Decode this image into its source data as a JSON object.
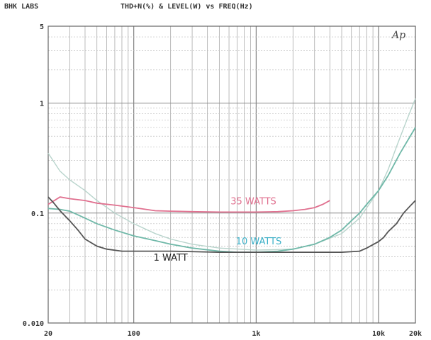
{
  "header": {
    "brand": "BHK LABS",
    "title": "THD+N(%) & LEVEL(W) vs FREQ(Hz)",
    "logo_text": "Ap"
  },
  "chart_data": {
    "type": "line",
    "title": "THD+N(%) & LEVEL(W) vs FREQ(Hz)",
    "xscale": "log",
    "yscale": "log",
    "xlim": [
      20,
      20000
    ],
    "ylim": [
      0.01,
      5
    ],
    "grid": true,
    "x_ticks": [
      {
        "value": 20,
        "label": "20"
      },
      {
        "value": 100,
        "label": "100"
      },
      {
        "value": 1000,
        "label": "1k"
      },
      {
        "value": 10000,
        "label": "10k"
      },
      {
        "value": 20000,
        "label": "20k"
      }
    ],
    "y_ticks": [
      {
        "value": 5,
        "label": "5"
      },
      {
        "value": 1,
        "label": "1"
      },
      {
        "value": 0.1,
        "label": "0.1"
      },
      {
        "value": 0.01,
        "label": "0.010"
      }
    ],
    "series": [
      {
        "name": "35 WATTS",
        "color": "#e0708f",
        "points": [
          [
            20,
            0.12
          ],
          [
            25,
            0.14
          ],
          [
            30,
            0.135
          ],
          [
            40,
            0.13
          ],
          [
            50,
            0.123
          ],
          [
            70,
            0.118
          ],
          [
            100,
            0.112
          ],
          [
            150,
            0.105
          ],
          [
            200,
            0.104
          ],
          [
            300,
            0.103
          ],
          [
            500,
            0.102
          ],
          [
            700,
            0.102
          ],
          [
            1000,
            0.102
          ],
          [
            1500,
            0.103
          ],
          [
            2000,
            0.105
          ],
          [
            2500,
            0.108
          ],
          [
            3000,
            0.112
          ],
          [
            3500,
            0.12
          ],
          [
            4000,
            0.13
          ]
        ]
      },
      {
        "name": "10 WATTS",
        "color": "#6fb8a8",
        "points": [
          [
            20,
            0.11
          ],
          [
            25,
            0.108
          ],
          [
            30,
            0.104
          ],
          [
            40,
            0.09
          ],
          [
            50,
            0.08
          ],
          [
            70,
            0.07
          ],
          [
            100,
            0.062
          ],
          [
            150,
            0.056
          ],
          [
            200,
            0.052
          ],
          [
            300,
            0.048
          ],
          [
            500,
            0.045
          ],
          [
            700,
            0.044
          ],
          [
            1000,
            0.044
          ],
          [
            1500,
            0.045
          ],
          [
            2000,
            0.047
          ],
          [
            3000,
            0.052
          ],
          [
            4000,
            0.06
          ],
          [
            5000,
            0.07
          ],
          [
            6000,
            0.085
          ],
          [
            7000,
            0.1
          ],
          [
            8000,
            0.12
          ],
          [
            10000,
            0.16
          ],
          [
            12000,
            0.22
          ],
          [
            15000,
            0.35
          ],
          [
            20000,
            0.6
          ]
        ]
      },
      {
        "name": "1 WATT",
        "color": "#555555",
        "points": [
          [
            20,
            0.14
          ],
          [
            22,
            0.125
          ],
          [
            25,
            0.105
          ],
          [
            30,
            0.085
          ],
          [
            35,
            0.07
          ],
          [
            40,
            0.058
          ],
          [
            50,
            0.05
          ],
          [
            60,
            0.047
          ],
          [
            80,
            0.045
          ],
          [
            100,
            0.045
          ],
          [
            200,
            0.045
          ],
          [
            500,
            0.044
          ],
          [
            1000,
            0.044
          ],
          [
            2000,
            0.044
          ],
          [
            3000,
            0.044
          ],
          [
            5000,
            0.044
          ],
          [
            7000,
            0.045
          ],
          [
            8000,
            0.048
          ],
          [
            10000,
            0.055
          ],
          [
            11000,
            0.06
          ],
          [
            12000,
            0.068
          ],
          [
            14000,
            0.08
          ],
          [
            16000,
            0.1
          ],
          [
            18000,
            0.115
          ],
          [
            20000,
            0.13
          ]
        ]
      }
    ],
    "extra_traces": [
      {
        "color": "#b8d4cc",
        "points": [
          [
            20,
            0.35
          ],
          [
            25,
            0.24
          ],
          [
            30,
            0.2
          ],
          [
            40,
            0.16
          ],
          [
            50,
            0.13
          ],
          [
            70,
            0.1
          ],
          [
            100,
            0.08
          ],
          [
            150,
            0.065
          ],
          [
            200,
            0.058
          ],
          [
            300,
            0.052
          ],
          [
            500,
            0.048
          ],
          [
            1000,
            0.046
          ],
          [
            2000,
            0.047
          ],
          [
            3000,
            0.052
          ],
          [
            5000,
            0.065
          ],
          [
            7000,
            0.09
          ],
          [
            10000,
            0.16
          ],
          [
            12000,
            0.25
          ],
          [
            14000,
            0.4
          ],
          [
            17000,
            0.7
          ],
          [
            20000,
            1.1
          ]
        ]
      }
    ],
    "annotations": [
      {
        "text": "35 WATTS",
        "x": 950,
        "y": 0.12,
        "color": "#e0708f"
      },
      {
        "text": "10 WATTS",
        "x": 1050,
        "y": 0.052,
        "color": "#3bb0c8"
      },
      {
        "text": "1 WATT",
        "x": 200,
        "y": 0.037,
        "color": "#222222"
      }
    ]
  }
}
